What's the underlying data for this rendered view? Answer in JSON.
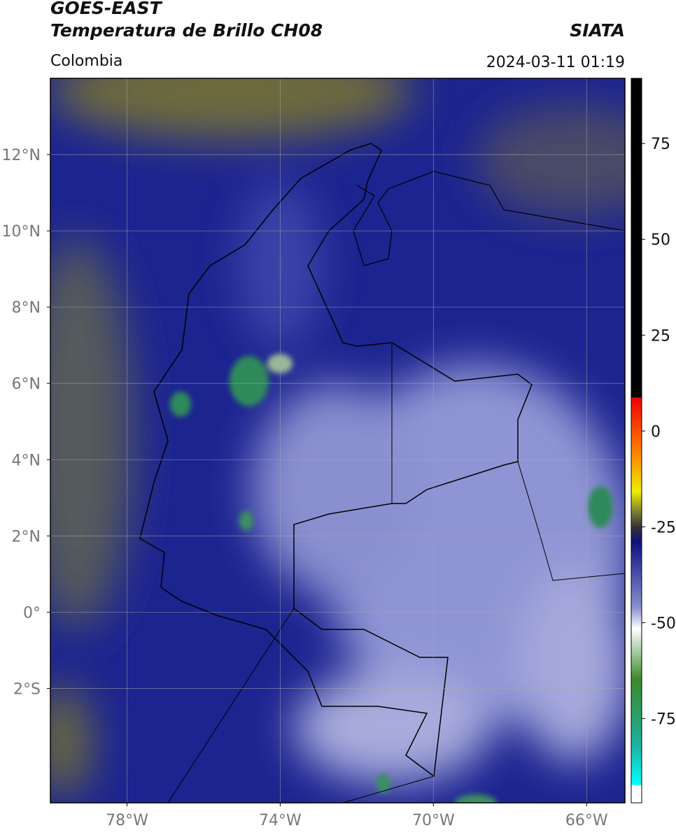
{
  "header": {
    "title": "GOES-EAST",
    "subtitle": "Temperatura de Brillo CH08",
    "source": "SIATA",
    "region": "Colombia",
    "datetime": "2024-03-11 01:19"
  },
  "map": {
    "lon_range": [
      -80,
      -65
    ],
    "lat_range": [
      -5,
      14
    ],
    "lat_ticks": [
      {
        "value": 12,
        "label": "12°N"
      },
      {
        "value": 10,
        "label": "10°N"
      },
      {
        "value": 8,
        "label": "8°N"
      },
      {
        "value": 6,
        "label": "6°N"
      },
      {
        "value": 4,
        "label": "4°N"
      },
      {
        "value": 2,
        "label": "2°N"
      },
      {
        "value": 0,
        "label": "0°"
      },
      {
        "value": -2,
        "label": "2°S"
      }
    ],
    "lon_ticks": [
      {
        "value": -78,
        "label": "78°W"
      },
      {
        "value": -74,
        "label": "74°W"
      },
      {
        "value": -70,
        "label": "70°W"
      },
      {
        "value": -66,
        "label": "66°W"
      }
    ],
    "grid": true
  },
  "colorbar": {
    "range": [
      -97,
      92
    ],
    "ticks": [
      75,
      50,
      25,
      0,
      -25,
      -50,
      -75
    ]
  }
}
